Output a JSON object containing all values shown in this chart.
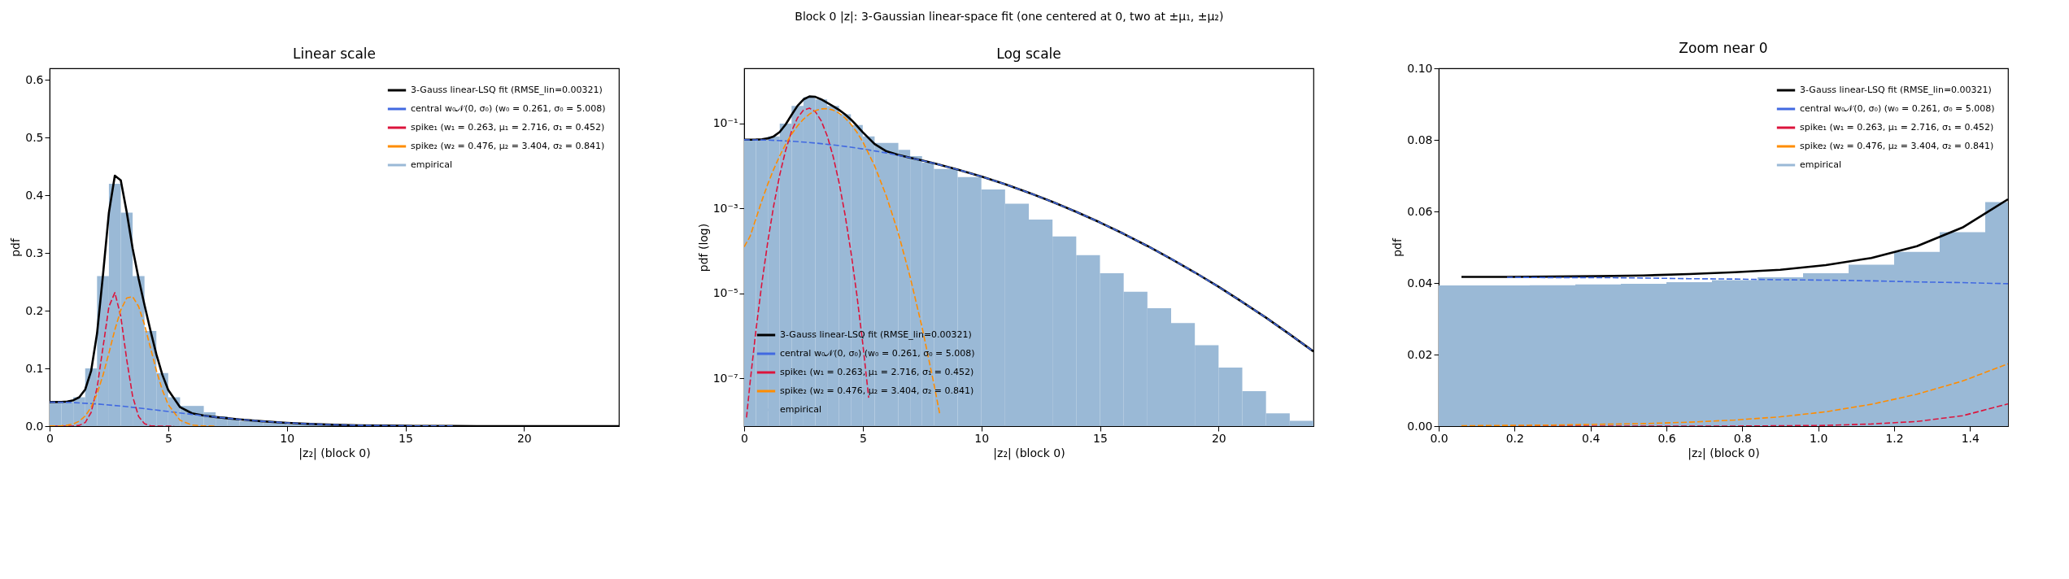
{
  "chart_data": [
    {
      "type": "histogram",
      "title": "Linear scale",
      "xlabel": "|z₂| (block 0)",
      "ylabel": "pdf",
      "annotations": [
        "Block 0 |z|: 3-Gaussian linear-space fit (one centered at 0, two at ±μ₁, ±μ₂)"
      ],
      "xlim": [
        0,
        24
      ],
      "xticks": [
        0,
        5,
        10,
        15,
        20
      ],
      "ylim": [
        0,
        0.62
      ],
      "yticks": [
        {
          "value": 0,
          "label": "0.0"
        },
        0.1,
        0.2,
        0.3,
        0.4,
        0.5,
        0.6
      ],
      "legend": "top right",
      "series": [
        {
          "type": "line",
          "name": "3-Gauss linear-LSQ fit (RMSE_lin=0.00321)",
          "color": "#000000",
          "line_style": "solid",
          "x": [
            0,
            0.25,
            0.5,
            0.75,
            1,
            1.25,
            1.5,
            1.75,
            2,
            2.25,
            2.5,
            2.75,
            3,
            3.25,
            3.5,
            3.75,
            4,
            4.25,
            4.5,
            4.75,
            5,
            5.5,
            6,
            6.5,
            7,
            7.5,
            8,
            9,
            10,
            11,
            12,
            13,
            14,
            15,
            16,
            17,
            18,
            19,
            20,
            21,
            22,
            23,
            24
          ],
          "values": [
            0.0417,
            0.0418,
            0.042,
            0.0427,
            0.0448,
            0.05,
            0.0634,
            0.0955,
            0.1606,
            0.262,
            0.37,
            0.434,
            0.426,
            0.371,
            0.308,
            0.256,
            0.21,
            0.166,
            0.1245,
            0.0893,
            0.0626,
            0.0329,
            0.0222,
            0.0182,
            0.0157,
            0.0136,
            0.0116,
            0.00827,
            0.00567,
            0.00373,
            0.00235,
            0.00143,
            0.000836,
            0.000469,
            0.000253,
            0.000131,
            6.52e-05,
            3.12e-05,
            1.43e-05,
            6.3e-06,
            2.68e-06,
            1.09e-06,
            4.3e-07
          ]
        },
        {
          "type": "line",
          "name": "central w₀𝒩(0, σ₀) (w₀ = 0.261, σ₀ = 5.008)",
          "color": "#4169e1",
          "line_style": "dashed",
          "x": [
            0,
            1,
            2,
            3,
            4,
            5,
            6,
            7,
            8,
            9,
            10,
            11,
            12,
            13,
            14,
            15,
            16,
            17
          ],
          "values": [
            0.0416,
            0.0408,
            0.0384,
            0.0348,
            0.0303,
            0.0253,
            0.0203,
            0.0157,
            0.0116,
            0.00827,
            0.00567,
            0.00373,
            0.00235,
            0.00143,
            0.000836,
            0.000469,
            0.000253,
            0.000131
          ]
        },
        {
          "type": "line",
          "name": "spike₁  (w₁ = 0.263, μ₁ = 2.716, σ₁ = 0.452)",
          "color": "#dc143c",
          "line_style": "dashed",
          "x": [
            0.1,
            0.25,
            0.5,
            0.75,
            1,
            1.25,
            1.5,
            1.75,
            2,
            2.25,
            2.5,
            2.75,
            3,
            3.25,
            3.5,
            3.75,
            4,
            4.25,
            4.5,
            4.75,
            5,
            5.25
          ],
          "values": [
            1.2e-08,
            8e-08,
            1.4e-06,
            1.8e-05,
            0.00017,
            0.0012,
            0.0062,
            0.0236,
            0.0661,
            0.1364,
            0.207,
            0.2313,
            0.1904,
            0.1154,
            0.0515,
            0.0169,
            0.0041,
            0.00073,
            9.6e-05,
            9.3e-06,
            6.6e-07,
            3.5e-08
          ]
        },
        {
          "type": "line",
          "name": "spike₂  (w₂ = 0.476, μ₂ = 3.404, σ₂ = 0.841)",
          "color": "#ff8c00",
          "line_style": "dashed",
          "x": [
            0,
            0.25,
            0.5,
            0.75,
            1,
            1.25,
            1.5,
            1.75,
            2,
            2.25,
            2.5,
            2.75,
            3,
            3.25,
            3.5,
            3.75,
            4,
            4.25,
            4.5,
            4.75,
            5,
            5.5,
            6,
            6.5,
            7
          ],
          "values": [
            0.000125,
            0.00022,
            0.000585,
            0.00155,
            0.0038,
            0.0085,
            0.0174,
            0.0327,
            0.0561,
            0.0881,
            0.1267,
            0.1669,
            0.2012,
            0.222,
            0.2243,
            0.2075,
            0.1757,
            0.136,
            0.0966,
            0.0627,
            0.0373,
            0.0101,
            0.00193,
            0.00026,
            2.4e-05
          ]
        },
        {
          "type": "histogram",
          "name": "empirical",
          "color": "#9ab9d6",
          "bins": [
            0,
            0.5,
            1,
            1.5,
            2,
            2.5,
            3,
            3.5,
            4,
            4.5,
            5,
            5.5,
            6,
            6.5,
            7,
            7.5,
            8,
            9,
            10,
            11,
            12
          ],
          "values": [
            0.04,
            0.042,
            0.05,
            0.1,
            0.26,
            0.42,
            0.37,
            0.26,
            0.165,
            0.092,
            0.05,
            0.035,
            0.035,
            0.024,
            0.017,
            0.012,
            0.0085,
            0.0055,
            0.0028,
            0.0013
          ]
        }
      ]
    },
    {
      "type": "histogram",
      "title": "Log scale",
      "xlabel": "|z₂| (block 0)",
      "ylabel": "pdf (log)",
      "log": "y",
      "xlim": [
        0,
        24
      ],
      "xticks": [
        0,
        5,
        10,
        15,
        20
      ],
      "ylim": [
        7.5e-09,
        2
      ],
      "yticks": [
        {
          "value": 1e-07,
          "label": "10⁻⁷"
        },
        {
          "value": 1e-05,
          "label": "10⁻⁵"
        },
        {
          "value": 0.001,
          "label": "10⁻³"
        },
        {
          "value": 0.1,
          "label": "10⁻¹"
        }
      ],
      "legend": "bottom left",
      "series": [
        {
          "type": "line",
          "name": "3-Gauss linear-LSQ fit (RMSE_lin=0.00321)",
          "color": "#000000",
          "line_style": "solid",
          "x": [
            0,
            0.25,
            0.5,
            0.75,
            1,
            1.25,
            1.5,
            1.75,
            2,
            2.25,
            2.5,
            2.75,
            3,
            3.25,
            3.5,
            3.75,
            4,
            4.25,
            4.5,
            4.75,
            5,
            5.5,
            6,
            6.5,
            7,
            7.5,
            8,
            9,
            10,
            11,
            12,
            13,
            14,
            15,
            16,
            17,
            18,
            19,
            20,
            21,
            22,
            23,
            24
          ],
          "values": [
            0.0417,
            0.0418,
            0.042,
            0.0427,
            0.0448,
            0.05,
            0.0634,
            0.0955,
            0.1606,
            0.262,
            0.37,
            0.434,
            0.426,
            0.371,
            0.308,
            0.256,
            0.21,
            0.166,
            0.1245,
            0.0893,
            0.0626,
            0.0329,
            0.0222,
            0.0182,
            0.0157,
            0.0136,
            0.0116,
            0.00827,
            0.00567,
            0.00373,
            0.00235,
            0.00143,
            0.000836,
            0.000469,
            0.000253,
            0.000131,
            6.52e-05,
            3.12e-05,
            1.43e-05,
            6.3e-06,
            2.68e-06,
            1.09e-06,
            4.3e-07
          ]
        },
        {
          "type": "line",
          "name": "central w₀𝒩(0, σ₀) (w₀ = 0.261, σ₀ = 5.008)",
          "color": "#4169e1",
          "line_style": "dashed",
          "x": [
            0,
            1,
            2,
            3,
            4,
            5,
            6,
            7,
            8,
            9,
            10,
            11,
            12,
            13,
            14,
            15,
            16,
            17,
            18,
            19,
            20,
            21,
            22,
            23,
            24
          ],
          "values": [
            0.0416,
            0.0408,
            0.0384,
            0.0348,
            0.0303,
            0.0253,
            0.0203,
            0.0157,
            0.0116,
            0.00827,
            0.00567,
            0.00373,
            0.00235,
            0.00143,
            0.000836,
            0.000469,
            0.000253,
            0.000131,
            6.52e-05,
            3.12e-05,
            1.43e-05,
            6.3e-06,
            2.68e-06,
            1.09e-06,
            4.3e-07
          ]
        },
        {
          "type": "line",
          "name": "spike₁  (w₁ = 0.263, μ₁ = 2.716, σ₁ = 0.452)",
          "color": "#dc143c",
          "line_style": "dashed",
          "x": [
            0.1,
            0.25,
            0.5,
            0.75,
            1,
            1.25,
            1.5,
            1.75,
            2,
            2.25,
            2.5,
            2.75,
            3,
            3.25,
            3.5,
            3.75,
            4,
            4.25,
            4.5,
            4.75,
            5,
            5.25
          ],
          "values": [
            1.2e-08,
            8e-08,
            1.4e-06,
            1.8e-05,
            0.00017,
            0.0012,
            0.0062,
            0.0236,
            0.0661,
            0.1364,
            0.207,
            0.2313,
            0.1904,
            0.1154,
            0.0515,
            0.0169,
            0.0041,
            0.00073,
            9.6e-05,
            9.3e-06,
            6.6e-07,
            3.5e-08
          ]
        },
        {
          "type": "line",
          "name": "spike₂  (w₂ = 0.476, μ₂ = 3.404, σ₂ = 0.841)",
          "color": "#ff8c00",
          "line_style": "dashed",
          "x": [
            0,
            0.25,
            0.5,
            0.75,
            1,
            1.25,
            1.5,
            1.75,
            2,
            2.25,
            2.5,
            2.75,
            3,
            3.25,
            3.5,
            3.75,
            4,
            4.25,
            4.5,
            4.75,
            5,
            5.5,
            6,
            6.5,
            7,
            7.5,
            8,
            8.25
          ],
          "values": [
            0.000125,
            0.00022,
            0.000585,
            0.00155,
            0.0038,
            0.0085,
            0.0174,
            0.0327,
            0.0561,
            0.0881,
            0.1267,
            0.1669,
            0.2012,
            0.222,
            0.2243,
            0.2075,
            0.1757,
            0.136,
            0.0966,
            0.0627,
            0.0373,
            0.0101,
            0.00193,
            0.00026,
            2.4e-05,
            1.6e-06,
            7.4e-08,
            1.4e-08
          ]
        },
        {
          "type": "histogram",
          "name": "empirical",
          "color": "#9ab9d6",
          "bins": [
            0,
            0.5,
            1,
            1.5,
            2,
            2.5,
            3,
            3.5,
            4,
            4.5,
            5,
            5.5,
            6,
            6.5,
            7,
            7.5,
            8,
            9,
            10,
            11,
            12,
            13,
            14,
            15,
            16,
            17,
            18,
            19,
            20,
            21,
            22,
            23,
            24
          ],
          "values": [
            0.04,
            0.042,
            0.05,
            0.1,
            0.26,
            0.42,
            0.37,
            0.26,
            0.165,
            0.092,
            0.05,
            0.035,
            0.035,
            0.024,
            0.017,
            0.012,
            0.0085,
            0.0055,
            0.0028,
            0.0013,
            0.00055,
            0.00022,
            8e-05,
            3e-05,
            1.1e-05,
            4.5e-06,
            2e-06,
            6e-07,
            1.8e-07,
            5e-08,
            1.5e-08,
            1e-08
          ]
        }
      ]
    },
    {
      "type": "histogram",
      "title": "Zoom near 0",
      "xlabel": "|z₂| (block 0)",
      "ylabel": "pdf",
      "xlim": [
        0,
        1.5
      ],
      "xticks": [
        {
          "value": 0,
          "label": "0.0"
        },
        0.2,
        0.4,
        0.6,
        0.8,
        {
          "value": 1,
          "label": "1.0"
        },
        1.2,
        1.4
      ],
      "ylim": [
        0,
        0.1
      ],
      "yticks": [
        {
          "value": 0,
          "label": "0.00"
        },
        0.02,
        0.04,
        0.06,
        0.08,
        {
          "value": 0.1,
          "label": "0.10"
        }
      ],
      "legend": "top right",
      "series": [
        {
          "type": "line",
          "name": "3-Gauss linear-LSQ fit (RMSE_lin=0.00321)",
          "color": "#000000",
          "line_style": "solid",
          "x": [
            0.06,
            0.18,
            0.3,
            0.42,
            0.54,
            0.66,
            0.78,
            0.9,
            1.02,
            1.14,
            1.26,
            1.38,
            1.5
          ],
          "values": [
            0.0417,
            0.0417,
            0.0418,
            0.0419,
            0.0421,
            0.0425,
            0.043,
            0.0437,
            0.045,
            0.047,
            0.0503,
            0.0555,
            0.0634
          ]
        },
        {
          "type": "line",
          "name": "central w₀𝒩(0, σ₀) (w₀ = 0.261, σ₀ = 5.008)",
          "color": "#4169e1",
          "line_style": "dashed",
          "x": [
            0.18,
            0.3,
            0.42,
            0.54,
            0.66,
            0.78,
            0.9,
            1.02,
            1.14,
            1.26,
            1.38,
            1.5
          ],
          "values": [
            0.0416,
            0.0415,
            0.0415,
            0.0414,
            0.0412,
            0.0411,
            0.0409,
            0.0408,
            0.0406,
            0.0403,
            0.0401,
            0.0398
          ]
        },
        {
          "type": "line",
          "name": "spike₁  (w₁ = 0.263, μ₁ = 2.716, σ₁ = 0.452)",
          "color": "#dc143c",
          "line_style": "dashed",
          "x": [
            0.06,
            0.18,
            0.3,
            0.42,
            0.54,
            0.66,
            0.78,
            0.9,
            1.02,
            1.14,
            1.26,
            1.38,
            1.5
          ],
          "values": [
            0,
            0,
            0,
            0,
            0,
            0,
            0,
            0.0001,
            0.0002,
            0.0006,
            0.0013,
            0.0029,
            0.0062
          ]
        },
        {
          "type": "line",
          "name": "spike₂  (w₂ = 0.476, μ₂ = 3.404, σ₂ = 0.841)",
          "color": "#ff8c00",
          "line_style": "dashed",
          "x": [
            0.06,
            0.18,
            0.3,
            0.42,
            0.54,
            0.66,
            0.78,
            0.9,
            1.02,
            1.14,
            1.26,
            1.38,
            1.5
          ],
          "values": [
            0.0001,
            0.0002,
            0.0003,
            0.0005,
            0.0007,
            0.0011,
            0.0017,
            0.0026,
            0.004,
            0.0061,
            0.0089,
            0.0126,
            0.0174
          ]
        },
        {
          "type": "histogram",
          "name": "empirical",
          "color": "#9ab9d6",
          "bins": [
            0,
            0.12,
            0.24,
            0.36,
            0.48,
            0.6,
            0.72,
            0.84,
            0.96,
            1.08,
            1.2,
            1.32,
            1.44,
            1.5
          ],
          "values": [
            0.0393,
            0.0393,
            0.0394,
            0.0396,
            0.0398,
            0.0402,
            0.0408,
            0.0416,
            0.0427,
            0.0451,
            0.0487,
            0.0542,
            0.0626
          ]
        }
      ]
    }
  ]
}
